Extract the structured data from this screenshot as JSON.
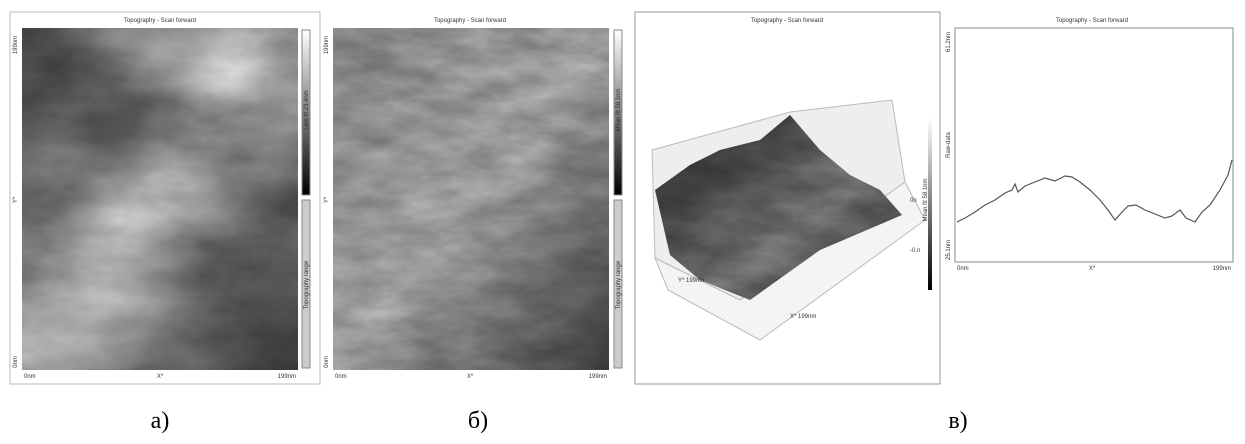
{
  "panels": [
    {
      "title": "Topography - Scan forward",
      "y_max": "199nm",
      "y_min": "0nm",
      "y_axis": "Y*",
      "x_min": "0nm",
      "x_axis": "X*",
      "x_max": "199nm",
      "bar_top": "Line fit 23.4nm",
      "bar_bottom": "Topography range"
    },
    {
      "title": "Topography - Scan forward",
      "y_max": "199nm",
      "y_min": "0nm",
      "y_axis": "Y*",
      "x_min": "0nm",
      "x_axis": "X*",
      "x_max": "199nm",
      "bar_top": "Mean fit 58.1nm",
      "bar_bottom": "Topography range"
    },
    {
      "title": "Topography - Scan forward",
      "y_axis": "Y* 199nm",
      "x_axis": "X* 199nm",
      "z_top": "0n",
      "z_bottom": "-0.n",
      "bar_label": "Mean fit 58.1nm"
    },
    {
      "title": "Topography - Scan forward",
      "y_max": "61.2nm",
      "y_min": "25.1nm",
      "y_axis": "Raw-data",
      "x_min": "0nm",
      "x_axis": "X*",
      "x_max": "199nm"
    }
  ],
  "captions": [
    "а)",
    "б)",
    "в)"
  ]
}
